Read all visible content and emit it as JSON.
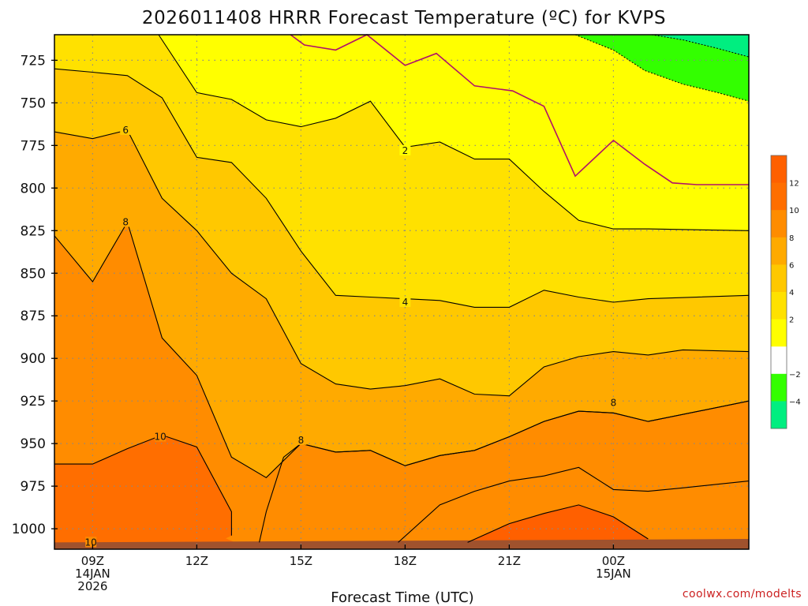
{
  "chart_data": {
    "type": "heatmap",
    "title": "2026011408 HRRR Forecast Temperature (ºC) for KVPS",
    "xlabel": "Forecast Time (UTC)",
    "ylabel": "",
    "credit": "coolwx.com/modelts",
    "x_range_hours": [
      7.9,
      27.9
    ],
    "y_range_hpa": [
      710,
      1012
    ],
    "surface_pressure_hpa": 1008,
    "x_ticks": [
      {
        "hour": 9,
        "lines": [
          "09Z",
          "14JAN",
          "2026"
        ]
      },
      {
        "hour": 12,
        "lines": [
          "12Z"
        ]
      },
      {
        "hour": 15,
        "lines": [
          "15Z"
        ]
      },
      {
        "hour": 18,
        "lines": [
          "18Z"
        ]
      },
      {
        "hour": 21,
        "lines": [
          "21Z"
        ]
      },
      {
        "hour": 24,
        "lines": [
          "00Z",
          "15JAN"
        ]
      }
    ],
    "y_ticks": [
      725,
      750,
      775,
      800,
      825,
      850,
      875,
      900,
      925,
      950,
      975,
      1000
    ],
    "colorbar": {
      "levels": [
        -6,
        -4,
        -2,
        0,
        2,
        4,
        6,
        8,
        10,
        12,
        14
      ],
      "labels": [
        "−4",
        "−2",
        "2",
        "4",
        "6",
        "8",
        "10",
        "12"
      ],
      "label_values": [
        -4,
        -2,
        2,
        4,
        6,
        8,
        10,
        12
      ],
      "colors": [
        "#00ee80",
        "#33ff00",
        "#ffffff",
        "#ffff00",
        "#ffe100",
        "#ffc800",
        "#ffaa00",
        "#ff8c00",
        "#ff6e00",
        "#ff6000"
      ]
    },
    "contour_labels": [
      {
        "text": "6",
        "value": 6,
        "hour": 9.95,
        "hpa": 766
      },
      {
        "text": "8",
        "value": 8,
        "hour": 9.95,
        "hpa": 820
      },
      {
        "text": "2",
        "value": 2,
        "hour": 18.0,
        "hpa": 778
      },
      {
        "text": "4",
        "value": 4,
        "hour": 18.0,
        "hpa": 867
      },
      {
        "text": "10",
        "value": 10,
        "hour": 10.95,
        "hpa": 946
      },
      {
        "text": "8",
        "value": 8,
        "hour": 15.0,
        "hpa": 948
      },
      {
        "text": "8",
        "value": 8,
        "hour": 24.0,
        "hpa": 926
      },
      {
        "text": "10",
        "value": 10,
        "hour": 8.95,
        "hpa": 1008
      }
    ],
    "isotherms": {
      "zero": [
        [
          14.7,
          710
        ],
        [
          15.1,
          716
        ],
        [
          16.0,
          719
        ],
        [
          16.9,
          710
        ],
        [
          18.0,
          728
        ],
        [
          18.9,
          721
        ],
        [
          20.0,
          740
        ],
        [
          21.1,
          743
        ],
        [
          22.0,
          752
        ],
        [
          22.9,
          793
        ],
        [
          24.0,
          772
        ],
        [
          24.9,
          786
        ],
        [
          25.7,
          797
        ],
        [
          26.4,
          798
        ],
        [
          27.9,
          798
        ]
      ],
      "minus2": [
        [
          22.9,
          710
        ],
        [
          24.0,
          719
        ],
        [
          24.9,
          731
        ],
        [
          26.0,
          739
        ],
        [
          27.0,
          744
        ],
        [
          27.9,
          749
        ]
      ],
      "minus4": [
        [
          25.1,
          710
        ],
        [
          26.0,
          713
        ],
        [
          27.0,
          718
        ],
        [
          27.9,
          723
        ]
      ],
      "plus2": [
        [
          10.9,
          710
        ],
        [
          12.0,
          744
        ],
        [
          13.0,
          748
        ],
        [
          14.0,
          760
        ],
        [
          15.0,
          764
        ],
        [
          16.0,
          759
        ],
        [
          17.0,
          749
        ],
        [
          18.0,
          776
        ],
        [
          19.0,
          773
        ],
        [
          20.0,
          783
        ],
        [
          21.0,
          783
        ],
        [
          22.0,
          802
        ],
        [
          23.0,
          819
        ],
        [
          24.0,
          824
        ],
        [
          25.0,
          824
        ],
        [
          27.9,
          825
        ]
      ],
      "plus4": [
        [
          7.9,
          730
        ],
        [
          9.0,
          732
        ],
        [
          10.0,
          734
        ],
        [
          11.0,
          747
        ],
        [
          12.0,
          782
        ],
        [
          13.0,
          785
        ],
        [
          14.0,
          806
        ],
        [
          15.0,
          837
        ],
        [
          16.0,
          863
        ],
        [
          17.0,
          864
        ],
        [
          18.0,
          865
        ],
        [
          19.0,
          866
        ],
        [
          20.0,
          870
        ],
        [
          21.0,
          870
        ],
        [
          22.0,
          860
        ],
        [
          23.0,
          864
        ],
        [
          24.0,
          867
        ],
        [
          25.0,
          865
        ],
        [
          27.9,
          863
        ]
      ],
      "plus6": [
        [
          7.9,
          767
        ],
        [
          9.0,
          771
        ],
        [
          10.0,
          766
        ],
        [
          11.0,
          806
        ],
        [
          12.0,
          825
        ],
        [
          13.0,
          850
        ],
        [
          14.0,
          865
        ],
        [
          15.0,
          903
        ],
        [
          16.0,
          915
        ],
        [
          17.0,
          918
        ],
        [
          18.0,
          916
        ],
        [
          19.0,
          912
        ],
        [
          20.0,
          921
        ],
        [
          21.0,
          922
        ],
        [
          22.0,
          905
        ],
        [
          23.0,
          899
        ],
        [
          24.0,
          896
        ],
        [
          25.0,
          898
        ],
        [
          26.0,
          895
        ],
        [
          27.9,
          896
        ]
      ],
      "plus8": [
        [
          7.9,
          828
        ],
        [
          9.0,
          855
        ],
        [
          10.0,
          820
        ],
        [
          11.0,
          888
        ],
        [
          12.0,
          910
        ],
        [
          13.0,
          958
        ],
        [
          14.0,
          970
        ],
        [
          15.0,
          950
        ],
        [
          16.0,
          955
        ],
        [
          17.0,
          954
        ],
        [
          18.0,
          963
        ],
        [
          19.0,
          957
        ],
        [
          20.0,
          954
        ],
        [
          21.0,
          946
        ],
        [
          22.0,
          937
        ],
        [
          23.0,
          931
        ],
        [
          24.0,
          932
        ],
        [
          25.0,
          937
        ],
        [
          27.9,
          925
        ]
      ],
      "plus10": [
        [
          7.9,
          962
        ],
        [
          9.0,
          962
        ],
        [
          10.0,
          953
        ],
        [
          11.0,
          945
        ],
        [
          12.0,
          952
        ],
        [
          13.0,
          990
        ],
        [
          13.0,
          1004
        ]
      ]
    },
    "color_regions": [
      {
        "name": "0-2",
        "fill_value": 1
      },
      {
        "name": "2-4",
        "fill_value": 3
      },
      {
        "name": "4-6",
        "fill_value": 5
      },
      {
        "name": "6-8",
        "fill_value": 7
      },
      {
        "name": "8-10",
        "fill_value": 9
      },
      {
        "name": "10-12",
        "fill_value": 11
      },
      {
        "name": "12-14",
        "fill_value": 13
      }
    ]
  }
}
